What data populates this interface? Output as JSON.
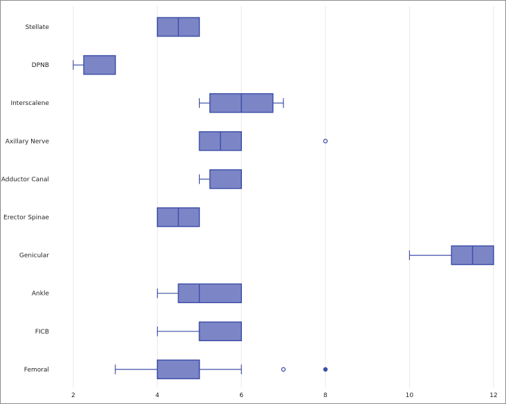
{
  "chart_data": {
    "type": "boxplot",
    "orientation": "horizontal",
    "title": "",
    "xlabel": "",
    "ylabel": "",
    "xlim": [
      2,
      12
    ],
    "xticks": [
      2,
      4,
      6,
      8,
      10,
      12
    ],
    "grid": true,
    "colors": {
      "box_fill": "#7c86c6",
      "box_edge": "#3f4fa8",
      "whisker": "#3f4fa8",
      "grid": "#e8e8e8"
    },
    "categories": [
      "Stellate",
      "DPNB",
      "Interscalene",
      "Axillary Nerve",
      "Adductor Canal",
      "Erector Spinae",
      "Genicular",
      "Ankle",
      "FICB",
      "Femoral"
    ],
    "boxes": [
      {
        "category": "Stellate",
        "whisker_low": 4,
        "q1": 4,
        "median": 4.5,
        "q3": 5,
        "whisker_high": 5,
        "outliers": []
      },
      {
        "category": "DPNB",
        "whisker_low": 2,
        "q1": 2.25,
        "median": 3,
        "q3": 3,
        "whisker_high": 3,
        "outliers": []
      },
      {
        "category": "Interscalene",
        "whisker_low": 5,
        "q1": 5.25,
        "median": 6,
        "q3": 6.75,
        "whisker_high": 7,
        "outliers": []
      },
      {
        "category": "Axillary Nerve",
        "whisker_low": 5,
        "q1": 5,
        "median": 5.5,
        "q3": 6,
        "whisker_high": 6,
        "outliers": [
          {
            "value": 8,
            "style": "open"
          }
        ]
      },
      {
        "category": "Adductor Canal",
        "whisker_low": 5,
        "q1": 5.25,
        "median": 6,
        "q3": 6,
        "whisker_high": 6,
        "outliers": []
      },
      {
        "category": "Erector Spinae",
        "whisker_low": 4,
        "q1": 4,
        "median": 4.5,
        "q3": 5,
        "whisker_high": 5,
        "outliers": []
      },
      {
        "category": "Genicular",
        "whisker_low": 10,
        "q1": 11,
        "median": 11.5,
        "q3": 12,
        "whisker_high": 12,
        "outliers": []
      },
      {
        "category": "Ankle",
        "whisker_low": 4,
        "q1": 4.5,
        "median": 5,
        "q3": 6,
        "whisker_high": 6,
        "outliers": []
      },
      {
        "category": "FICB",
        "whisker_low": 4,
        "q1": 5,
        "median": 5,
        "q3": 6,
        "whisker_high": 6,
        "outliers": []
      },
      {
        "category": "Femoral",
        "whisker_low": 3,
        "q1": 4,
        "median": 5,
        "q3": 5,
        "whisker_high": 6,
        "outliers": [
          {
            "value": 7,
            "style": "open"
          },
          {
            "value": 8,
            "style": "filled"
          }
        ]
      }
    ]
  }
}
